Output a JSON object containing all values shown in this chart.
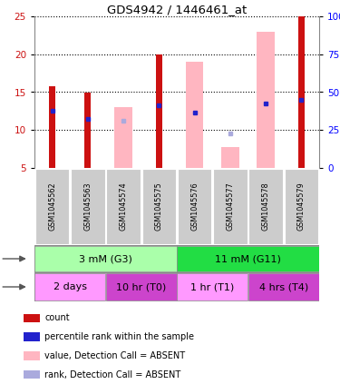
{
  "title": "GDS4942 / 1446461_at",
  "samples": [
    "GSM1045562",
    "GSM1045563",
    "GSM1045574",
    "GSM1045575",
    "GSM1045576",
    "GSM1045577",
    "GSM1045578",
    "GSM1045579"
  ],
  "red_bars": [
    15.8,
    14.9,
    0,
    20.0,
    0,
    0,
    0,
    25.0
  ],
  "pink_bars": [
    0,
    0,
    13.0,
    0,
    19.0,
    7.8,
    23.0,
    0
  ],
  "blue_dots": [
    12.5,
    11.5,
    0,
    13.3,
    12.3,
    0,
    13.5,
    14.0
  ],
  "light_blue_dots": [
    0,
    0,
    11.2,
    0,
    0,
    9.5,
    0,
    0
  ],
  "ylim_left": [
    5,
    25
  ],
  "ylim_right": [
    0,
    100
  ],
  "yticks_left": [
    5,
    10,
    15,
    20,
    25
  ],
  "yticks_right": [
    0,
    25,
    50,
    75,
    100
  ],
  "dose_groups": [
    {
      "label": "3 mM (G3)",
      "start": 0,
      "end": 4,
      "color": "#AAFFAA"
    },
    {
      "label": "11 mM (G11)",
      "start": 4,
      "end": 8,
      "color": "#22DD44"
    }
  ],
  "time_groups": [
    {
      "label": "2 days",
      "start": 0,
      "end": 2,
      "color": "#FF99FF"
    },
    {
      "label": "10 hr (T0)",
      "start": 2,
      "end": 4,
      "color": "#CC44CC"
    },
    {
      "label": "1 hr (T1)",
      "start": 4,
      "end": 6,
      "color": "#FF99FF"
    },
    {
      "label": "4 hrs (T4)",
      "start": 6,
      "end": 8,
      "color": "#CC44CC"
    }
  ],
  "legend_items": [
    {
      "color": "#CC1111",
      "label": "count"
    },
    {
      "color": "#2222CC",
      "label": "percentile rank within the sample"
    },
    {
      "color": "#FFB6C1",
      "label": "value, Detection Call = ABSENT"
    },
    {
      "color": "#AAAADD",
      "label": "rank, Detection Call = ABSENT"
    }
  ],
  "red_color": "#CC1111",
  "pink_color": "#FFB6C1",
  "blue_color": "#2222CC",
  "light_blue_color": "#AAAADD",
  "gray_box_color": "#CCCCCC",
  "red_bar_width": 0.18,
  "pink_bar_width": 0.5
}
